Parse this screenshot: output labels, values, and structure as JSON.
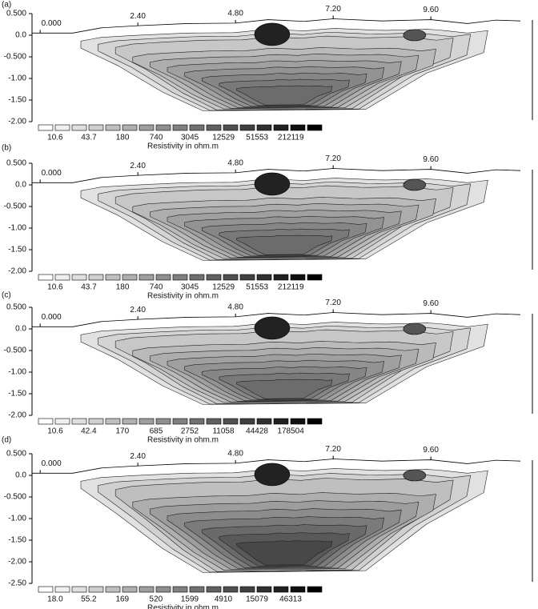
{
  "chart_data": [
    {
      "type": "contour",
      "label": "(a)",
      "xlim": [
        -0.2,
        11.8
      ],
      "ylim": [
        -2.0,
        0.5
      ],
      "xticks": [
        {
          "value": 0,
          "label": "0.000"
        },
        {
          "value": 2.4,
          "label": "2.40"
        },
        {
          "value": 4.8,
          "label": "4.80"
        },
        {
          "value": 7.2,
          "label": "7.20"
        },
        {
          "value": 9.6,
          "label": "9.60"
        }
      ],
      "yticks": [
        {
          "value": 0.5,
          "label": "0.500"
        },
        {
          "value": 0,
          "label": "0.0"
        },
        {
          "value": -0.5,
          "label": "-0.500"
        },
        {
          "value": -1,
          "label": "-1.00"
        },
        {
          "value": -1.5,
          "label": "-1.50"
        },
        {
          "value": -2,
          "label": "-2.00"
        }
      ],
      "colorbar": {
        "label": "Resistivity in ohm.m",
        "log": true,
        "lim": [
          5.25,
          865000
        ],
        "ticks": [
          10.6,
          43.7,
          180,
          740,
          3045,
          12529,
          51553,
          212119
        ]
      }
    },
    {
      "type": "contour",
      "label": "(b)",
      "xlim": [
        -0.2,
        11.8
      ],
      "ylim": [
        -2.0,
        0.5
      ],
      "xticks": [
        {
          "value": 0,
          "label": "0.000"
        },
        {
          "value": 2.4,
          "label": "2.40"
        },
        {
          "value": 4.8,
          "label": "4.80"
        },
        {
          "value": 7.2,
          "label": "7.20"
        },
        {
          "value": 9.6,
          "label": "9.60"
        }
      ],
      "yticks": [
        {
          "value": 0.5,
          "label": "0.500"
        },
        {
          "value": 0,
          "label": "0.0"
        },
        {
          "value": -0.5,
          "label": "-0.500"
        },
        {
          "value": -1,
          "label": "-1.00"
        },
        {
          "value": -1.5,
          "label": "-1.50"
        },
        {
          "value": -2,
          "label": "-2.00"
        }
      ],
      "colorbar": {
        "label": "Resistivity in ohm.m",
        "log": true,
        "lim": [
          5.25,
          865000
        ],
        "ticks": [
          10.6,
          43.7,
          180,
          740,
          3045,
          12529,
          51553,
          212119
        ]
      }
    },
    {
      "type": "contour",
      "label": "(c)",
      "xlim": [
        -0.2,
        11.8
      ],
      "ylim": [
        -2.0,
        0.5
      ],
      "xticks": [
        {
          "value": 0,
          "label": "0.000"
        },
        {
          "value": 2.4,
          "label": "2.40"
        },
        {
          "value": 4.8,
          "label": "4.80"
        },
        {
          "value": 7.2,
          "label": "7.20"
        },
        {
          "value": 9.6,
          "label": "9.60"
        }
      ],
      "yticks": [
        {
          "value": 0.5,
          "label": "0.500"
        },
        {
          "value": 0,
          "label": "0.0"
        },
        {
          "value": -0.5,
          "label": "-0.500"
        },
        {
          "value": -1,
          "label": "-1.00"
        },
        {
          "value": -1.5,
          "label": "-1.50"
        },
        {
          "value": -2,
          "label": "-2.00"
        }
      ],
      "colorbar": {
        "label": "Resistivity in ohm.m",
        "log": true,
        "lim": [
          5.3,
          714000
        ],
        "ticks": [
          10.6,
          42.4,
          170,
          685,
          2752,
          11058,
          44428,
          178504
        ]
      }
    },
    {
      "type": "contour",
      "label": "(d)",
      "xlim": [
        -0.2,
        11.8
      ],
      "ylim": [
        -2.5,
        0.5
      ],
      "xticks": [
        {
          "value": 0,
          "label": "0.000"
        },
        {
          "value": 2.4,
          "label": "2.40"
        },
        {
          "value": 4.8,
          "label": "4.80"
        },
        {
          "value": 7.2,
          "label": "7.20"
        },
        {
          "value": 9.6,
          "label": "9.60"
        }
      ],
      "yticks": [
        {
          "value": 0.5,
          "label": "0.500"
        },
        {
          "value": 0,
          "label": "0.0"
        },
        {
          "value": -0.5,
          "label": "-0.500"
        },
        {
          "value": -1,
          "label": "-1.00"
        },
        {
          "value": -1.5,
          "label": "-1.50"
        },
        {
          "value": -2,
          "label": "-2.00"
        },
        {
          "value": -2.5,
          "label": "-2.50"
        }
      ],
      "colorbar": {
        "label": "Resistivity in ohm.m",
        "log": true,
        "lim": [
          10.3,
          142000
        ],
        "ticks": [
          {
            "value": 18,
            "label": "18.0"
          },
          55.2,
          169,
          520,
          1599,
          4910,
          15079,
          46313
        ]
      }
    }
  ]
}
